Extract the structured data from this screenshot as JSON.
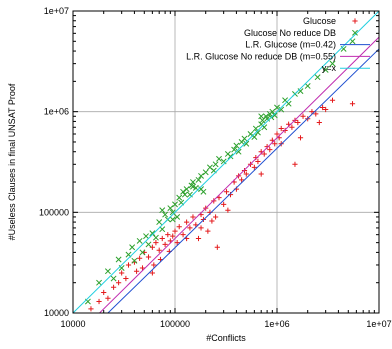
{
  "chart_data": {
    "type": "scatter",
    "title": "",
    "xlabel": "#Conflicts",
    "ylabel": "#Useless Clauses in final UNSAT Proof",
    "xscale": "log",
    "yscale": "log",
    "xlim": [
      10000,
      10000000
    ],
    "ylim": [
      10000,
      10000000
    ],
    "grid": true,
    "legend_position": "top-right",
    "x_ticks": [
      {
        "value": 10000,
        "label": "10000"
      },
      {
        "value": 100000,
        "label": "100000"
      },
      {
        "value": 1000000,
        "label": "1e+06"
      },
      {
        "value": 10000000,
        "label": "1e+07"
      }
    ],
    "y_ticks": [
      {
        "value": 10000,
        "label": "10000"
      },
      {
        "value": 100000,
        "label": "100000"
      },
      {
        "value": 1000000,
        "label": "1e+06"
      },
      {
        "value": 10000000,
        "label": "1e+07"
      }
    ],
    "series": [
      {
        "name": "Glucose",
        "kind": "points",
        "marker": "plus",
        "color": "#e41a1c",
        "points": [
          [
            15000,
            11000
          ],
          [
            18000,
            13000
          ],
          [
            20000,
            16000
          ],
          [
            22000,
            14000
          ],
          [
            25000,
            18000
          ],
          [
            28000,
            20000
          ],
          [
            30000,
            25000
          ],
          [
            33000,
            22000
          ],
          [
            35000,
            30000
          ],
          [
            40000,
            32000
          ],
          [
            42000,
            26000
          ],
          [
            45000,
            35000
          ],
          [
            48000,
            28000
          ],
          [
            50000,
            40000
          ],
          [
            55000,
            36000
          ],
          [
            60000,
            45000
          ],
          [
            62000,
            30000
          ],
          [
            65000,
            50000
          ],
          [
            70000,
            42000
          ],
          [
            75000,
            55000
          ],
          [
            80000,
            48000
          ],
          [
            85000,
            60000
          ],
          [
            90000,
            52000
          ],
          [
            95000,
            58000
          ],
          [
            100000,
            65000
          ],
          [
            105000,
            50000
          ],
          [
            110000,
            72000
          ],
          [
            120000,
            60000
          ],
          [
            130000,
            80000
          ],
          [
            140000,
            70000
          ],
          [
            150000,
            90000
          ],
          [
            160000,
            75000
          ],
          [
            170000,
            55000
          ],
          [
            180000,
            95000
          ],
          [
            190000,
            85000
          ],
          [
            200000,
            110000
          ],
          [
            210000,
            65000
          ],
          [
            220000,
            100000
          ],
          [
            240000,
            130000
          ],
          [
            250000,
            90000
          ],
          [
            260000,
            45000
          ],
          [
            270000,
            140000
          ],
          [
            300000,
            120000
          ],
          [
            320000,
            160000
          ],
          [
            350000,
            150000
          ],
          [
            380000,
            200000
          ],
          [
            400000,
            170000
          ],
          [
            420000,
            230000
          ],
          [
            450000,
            210000
          ],
          [
            480000,
            260000
          ],
          [
            500000,
            240000
          ],
          [
            550000,
            300000
          ],
          [
            600000,
            280000
          ],
          [
            620000,
            350000
          ],
          [
            650000,
            320000
          ],
          [
            700000,
            400000
          ],
          [
            750000,
            380000
          ],
          [
            800000,
            450000
          ],
          [
            850000,
            420000
          ],
          [
            900000,
            520000
          ],
          [
            950000,
            480000
          ],
          [
            1000000,
            600000
          ],
          [
            1050000,
            550000
          ],
          [
            1100000,
            680000
          ],
          [
            1200000,
            650000
          ],
          [
            1300000,
            750000
          ],
          [
            1400000,
            700000
          ],
          [
            1500000,
            820000
          ],
          [
            1600000,
            780000
          ],
          [
            1700000,
            550000
          ],
          [
            1800000,
            900000
          ],
          [
            2000000,
            850000
          ],
          [
            2200000,
            1000000
          ],
          [
            2400000,
            950000
          ],
          [
            2600000,
            780000
          ],
          [
            2800000,
            1100000
          ],
          [
            3000000,
            1050000
          ],
          [
            3500000,
            1300000
          ],
          [
            5500000,
            1200000
          ],
          [
            60000,
            25000
          ],
          [
            72000,
            34000
          ],
          [
            88000,
            41000
          ],
          [
            130000,
            55000
          ],
          [
            180000,
            70000
          ],
          [
            230000,
            82000
          ],
          [
            330000,
            105000
          ],
          [
            700000,
            240000
          ],
          [
            1100000,
            480000
          ],
          [
            1500000,
            300000
          ]
        ]
      },
      {
        "name": "Glucose No reduce DB",
        "kind": "points",
        "marker": "cross",
        "color": "#2ca02c",
        "points": [
          [
            14000,
            13000
          ],
          [
            18000,
            20000
          ],
          [
            22000,
            26000
          ],
          [
            25000,
            22000
          ],
          [
            28000,
            34000
          ],
          [
            30000,
            28000
          ],
          [
            35000,
            38000
          ],
          [
            38000,
            45000
          ],
          [
            40000,
            33000
          ],
          [
            45000,
            52000
          ],
          [
            48000,
            40000
          ],
          [
            52000,
            58000
          ],
          [
            55000,
            48000
          ],
          [
            60000,
            62000
          ],
          [
            65000,
            56000
          ],
          [
            70000,
            80000
          ],
          [
            75000,
            68000
          ],
          [
            80000,
            95000
          ],
          [
            85000,
            85000
          ],
          [
            90000,
            110000
          ],
          [
            95000,
            100000
          ],
          [
            100000,
            120000
          ],
          [
            105000,
            90000
          ],
          [
            110000,
            140000
          ],
          [
            115000,
            125000
          ],
          [
            120000,
            160000
          ],
          [
            125000,
            150000
          ],
          [
            130000,
            170000
          ],
          [
            140000,
            150000
          ],
          [
            145000,
            185000
          ],
          [
            150000,
            200000
          ],
          [
            160000,
            175000
          ],
          [
            170000,
            210000
          ],
          [
            180000,
            230000
          ],
          [
            190000,
            160000
          ],
          [
            200000,
            250000
          ],
          [
            220000,
            280000
          ],
          [
            240000,
            260000
          ],
          [
            250000,
            300000
          ],
          [
            270000,
            340000
          ],
          [
            300000,
            320000
          ],
          [
            330000,
            380000
          ],
          [
            350000,
            360000
          ],
          [
            380000,
            420000
          ],
          [
            400000,
            460000
          ],
          [
            420000,
            400000
          ],
          [
            450000,
            500000
          ],
          [
            480000,
            540000
          ],
          [
            500000,
            480000
          ],
          [
            550000,
            600000
          ],
          [
            600000,
            560000
          ],
          [
            620000,
            680000
          ],
          [
            650000,
            620000
          ],
          [
            700000,
            750000
          ],
          [
            720000,
            820000
          ],
          [
            750000,
            700000
          ],
          [
            780000,
            900000
          ],
          [
            800000,
            850000
          ],
          [
            850000,
            950000
          ],
          [
            880000,
            880000
          ],
          [
            900000,
            1000000
          ],
          [
            950000,
            920000
          ],
          [
            1000000,
            1100000
          ],
          [
            1100000,
            1050000
          ],
          [
            1200000,
            1300000
          ],
          [
            1300000,
            1200000
          ],
          [
            1500000,
            1500000
          ],
          [
            1700000,
            1600000
          ],
          [
            2000000,
            1800000
          ],
          [
            2500000,
            2200000
          ],
          [
            3000000,
            2600000
          ],
          [
            3500000,
            3000000
          ],
          [
            4500000,
            4200000
          ],
          [
            5500000,
            5000000
          ],
          [
            700000,
            900000
          ],
          [
            180000,
            170000
          ],
          [
            95000,
            85000
          ],
          [
            75000,
            105000
          ],
          [
            150000,
            180000
          ]
        ]
      },
      {
        "name": "L.R. Glucose (m=0.42)",
        "kind": "line",
        "color": "#1f4fd0",
        "x": [
          22000,
          10000000
        ],
        "y": [
          10000,
          4200000
        ]
      },
      {
        "name": "L.R. Glucose No reduce DB (m=0.55)",
        "kind": "line",
        "color": "#c02cb0",
        "x": [
          18200,
          10000000
        ],
        "y": [
          10000,
          5500000
        ]
      },
      {
        "name": "y=x",
        "kind": "line",
        "color": "#22cfe0",
        "x": [
          10000,
          10000000
        ],
        "y": [
          10000,
          10000000
        ]
      }
    ]
  }
}
